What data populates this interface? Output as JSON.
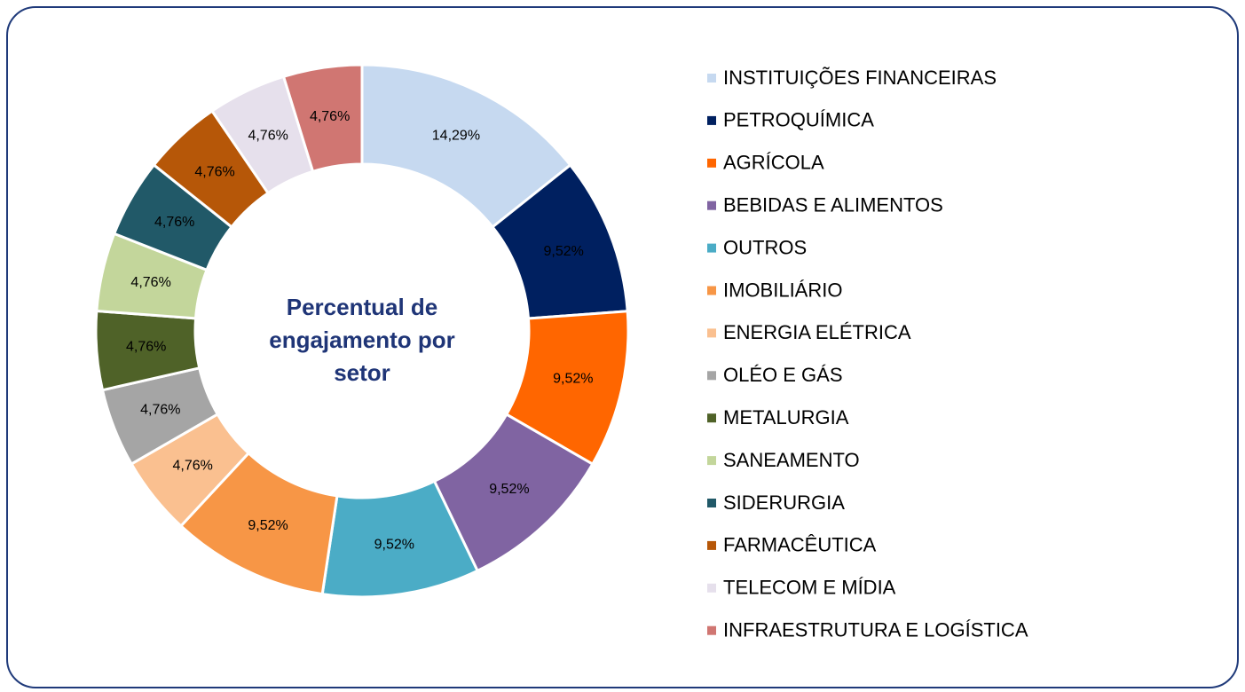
{
  "chart_data": {
    "type": "donut",
    "title": "Percentual de engajamento por setor",
    "categories": [
      "INSTITUIÇÕES FINANCEIRAS",
      "PETROQUÍMICA",
      "AGRÍCOLA",
      "BEBIDAS E ALIMENTOS",
      "OUTROS",
      "IMOBILIÁRIO",
      "ENERGIA ELÉTRICA",
      "OLÉO E GÁS",
      "METALURGIA",
      "SANEAMENTO",
      "SIDERURGIA",
      "FARMACÊUTICA",
      "TELECOM E MÍDIA",
      "INFRAESTRUTURA E LOGÍSTICA"
    ],
    "values": [
      14.29,
      9.52,
      9.52,
      9.52,
      9.52,
      9.52,
      4.76,
      4.76,
      4.76,
      4.76,
      4.76,
      4.76,
      4.76,
      4.76
    ],
    "value_labels": [
      "14,29%",
      "9,52%",
      "9,52%",
      "9,52%",
      "9,52%",
      "9,52%",
      "4,76%",
      "4,76%",
      "4,76%",
      "4,76%",
      "4,76%",
      "4,76%",
      "4,76%",
      "4,76%"
    ],
    "colors": [
      "#c6d9f0",
      "#002060",
      "#ff6600",
      "#8064a2",
      "#4bacc6",
      "#f79646",
      "#fac090",
      "#a5a5a5",
      "#4f6228",
      "#c3d69b",
      "#215968",
      "#b65708",
      "#e6e0ec",
      "#d07672"
    ],
    "legend": "right"
  }
}
